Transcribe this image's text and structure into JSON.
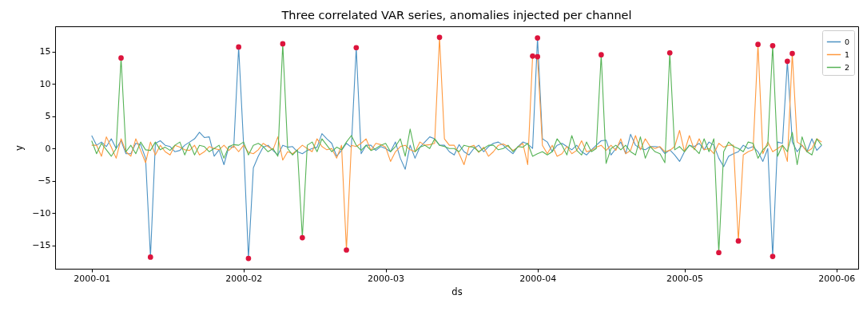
{
  "chart_data": {
    "type": "line",
    "title": "Three correlated VAR series, anomalies injected per channel",
    "xlabel": "ds",
    "ylabel": "y",
    "x": [
      "2000-01-01",
      "2000-01-02",
      "2000-01-03",
      "2000-01-04",
      "2000-01-05",
      "2000-01-06",
      "2000-01-07",
      "2000-01-08",
      "2000-01-09",
      "2000-01-10",
      "2000-01-11",
      "2000-01-12",
      "2000-01-13",
      "2000-01-14",
      "2000-01-15",
      "2000-01-16",
      "2000-01-17",
      "2000-01-18",
      "2000-01-19",
      "2000-01-20",
      "2000-01-21",
      "2000-01-22",
      "2000-01-23",
      "2000-01-24",
      "2000-01-25",
      "2000-01-26",
      "2000-01-27",
      "2000-01-28",
      "2000-01-29",
      "2000-01-30",
      "2000-01-31",
      "2000-02-01",
      "2000-02-02",
      "2000-02-03",
      "2000-02-04",
      "2000-02-05",
      "2000-02-06",
      "2000-02-07",
      "2000-02-08",
      "2000-02-09",
      "2000-02-10",
      "2000-02-11",
      "2000-02-12",
      "2000-02-13",
      "2000-02-14",
      "2000-02-15",
      "2000-02-16",
      "2000-02-17",
      "2000-02-18",
      "2000-02-19",
      "2000-02-20",
      "2000-02-21",
      "2000-02-22",
      "2000-02-23",
      "2000-02-24",
      "2000-02-25",
      "2000-02-26",
      "2000-02-27",
      "2000-02-28",
      "2000-02-29",
      "2000-03-01",
      "2000-03-02",
      "2000-03-03",
      "2000-03-04",
      "2000-03-05",
      "2000-03-06",
      "2000-03-07",
      "2000-03-08",
      "2000-03-09",
      "2000-03-10",
      "2000-03-11",
      "2000-03-12",
      "2000-03-13",
      "2000-03-14",
      "2000-03-15",
      "2000-03-16",
      "2000-03-17",
      "2000-03-18",
      "2000-03-19",
      "2000-03-20",
      "2000-03-21",
      "2000-03-22",
      "2000-03-23",
      "2000-03-24",
      "2000-03-25",
      "2000-03-26",
      "2000-03-27",
      "2000-03-28",
      "2000-03-29",
      "2000-03-30",
      "2000-03-31",
      "2000-04-01",
      "2000-04-02",
      "2000-04-03",
      "2000-04-04",
      "2000-04-05",
      "2000-04-06",
      "2000-04-07",
      "2000-04-08",
      "2000-04-09",
      "2000-04-10",
      "2000-04-11",
      "2000-04-12",
      "2000-04-13",
      "2000-04-14",
      "2000-04-15",
      "2000-04-16",
      "2000-04-17",
      "2000-04-18",
      "2000-04-19",
      "2000-04-20",
      "2000-04-21",
      "2000-04-22",
      "2000-04-23",
      "2000-04-24",
      "2000-04-25",
      "2000-04-26",
      "2000-04-27",
      "2000-04-28",
      "2000-04-29",
      "2000-04-30",
      "2000-05-01",
      "2000-05-02",
      "2000-05-03",
      "2000-05-04",
      "2000-05-05",
      "2000-05-06",
      "2000-05-07",
      "2000-05-08",
      "2000-05-09",
      "2000-05-10",
      "2000-05-11",
      "2000-05-12",
      "2000-05-13",
      "2000-05-14",
      "2000-05-15",
      "2000-05-16",
      "2000-05-17",
      "2000-05-18",
      "2000-05-19",
      "2000-05-20",
      "2000-05-21",
      "2000-05-22",
      "2000-05-23",
      "2000-05-24",
      "2000-05-25",
      "2000-05-26",
      "2000-05-27",
      "2000-05-28",
      "2000-05-29"
    ],
    "series": [
      {
        "name": "0",
        "color": "#4c92c3",
        "values": [
          2.0,
          0.5,
          1.0,
          0.3,
          1.5,
          0.0,
          1.2,
          -0.8,
          -0.8,
          0.8,
          0.6,
          -1.5,
          -16.8,
          0.8,
          1.2,
          0.5,
          0.3,
          -0.5,
          -0.3,
          0.5,
          1.0,
          1.5,
          2.5,
          1.7,
          1.8,
          -1.2,
          -0.2,
          -2.5,
          0.3,
          0.2,
          15.7,
          0.7,
          -17.0,
          -3.0,
          -1.2,
          0.2,
          0.5,
          -0.3,
          -1.0,
          0.5,
          0.2,
          0.3,
          -0.5,
          -0.8,
          -0.3,
          0.0,
          0.2,
          2.3,
          1.5,
          0.8,
          -1.2,
          -0.3,
          0.8,
          0.2,
          15.6,
          -0.8,
          0.5,
          0.5,
          -0.3,
          0.3,
          0.0,
          -0.5,
          1.0,
          -1.5,
          -3.2,
          0.5,
          -1.5,
          0.2,
          1.0,
          1.8,
          1.5,
          0.5,
          0.5,
          -0.5,
          -1.0,
          0.6,
          -0.5,
          -1.0,
          0.0,
          0.5,
          -0.5,
          0.3,
          0.8,
          1.0,
          0.5,
          -0.2,
          -0.8,
          0.3,
          1.0,
          0.7,
          0.0,
          17.1,
          1.5,
          1.0,
          -0.5,
          0.5,
          0.8,
          0.3,
          -0.2,
          0.5,
          -0.5,
          -1.0,
          -0.2,
          0.5,
          1.2,
          1.3,
          -1.0,
          0.0,
          1.0,
          -0.8,
          2.2,
          0.5,
          0.0,
          -0.2,
          0.3,
          0.3,
          0.2,
          -0.8,
          -0.2,
          -1.0,
          -2.0,
          -0.5,
          0.5,
          0.3,
          0.8,
          -0.2,
          1.0,
          0.5,
          -1.5,
          -2.8,
          -1.2,
          -0.8,
          -0.5,
          0.5,
          0.0,
          0.3,
          -0.5,
          -2.0,
          0.0,
          -16.7,
          1.0,
          0.8,
          13.5,
          1.0,
          -0.5,
          0.5,
          -0.5,
          1.5,
          -0.3,
          0.5
        ]
      },
      {
        "name": "1",
        "color": "#ff993e",
        "values": [
          0.5,
          0.5,
          -1.2,
          1.8,
          0.2,
          -1.5,
          1.5,
          -0.5,
          -1.2,
          1.5,
          -0.3,
          -2.2,
          1.0,
          -1.0,
          0.5,
          -0.5,
          -1.0,
          0.5,
          0.2,
          -0.2,
          -0.3,
          0.5,
          -1.0,
          -0.5,
          0.3,
          0.0,
          -0.2,
          0.5,
          -0.3,
          0.4,
          -0.5,
          0.5,
          -0.6,
          -0.8,
          -0.2,
          0.8,
          0.3,
          -0.2,
          1.8,
          -1.8,
          -0.5,
          -0.8,
          -0.2,
          0.5,
          0.0,
          -0.5,
          1.5,
          0.3,
          -0.2,
          0.0,
          -1.5,
          0.5,
          -15.7,
          0.5,
          0.3,
          0.8,
          1.5,
          -0.3,
          0.8,
          0.6,
          0.2,
          -2.0,
          -0.5,
          0.3,
          0.5,
          -0.2,
          -0.5,
          1.0,
          0.5,
          0.6,
          0.8,
          17.2,
          1.5,
          0.5,
          0.5,
          -0.8,
          -2.5,
          0.2,
          0.5,
          -0.6,
          0.2,
          -1.2,
          -0.5,
          0.5,
          0.7,
          0.3,
          -0.3,
          0.2,
          0.8,
          -2.5,
          14.3,
          14.2,
          0.5,
          -0.8,
          0.5,
          -1.2,
          -0.8,
          0.3,
          -0.8,
          -0.3,
          1.2,
          -0.5,
          -0.3,
          0.2,
          0.5,
          -0.3,
          0.5,
          -0.3,
          1.5,
          -0.8,
          -0.3,
          2.0,
          -0.2,
          1.5,
          0.3,
          0.0,
          0.3,
          -0.5,
          -0.3,
          0.3,
          2.8,
          -0.5,
          2.0,
          -0.2,
          1.5,
          -0.2,
          0.0,
          -0.8,
          0.8,
          0.2,
          0.5,
          0.5,
          -14.3,
          -1.0,
          -0.5,
          -0.2,
          16.1,
          -0.8,
          1.0,
          -0.5,
          0.0,
          0.5,
          -2.0,
          14.7,
          1.0,
          0.5,
          -0.5,
          0.0,
          1.5,
          1.0
        ]
      },
      {
        "name": "2",
        "color": "#56b356",
        "values": [
          1.2,
          -0.8,
          0.8,
          -0.2,
          -1.2,
          0.0,
          14.0,
          -0.5,
          0.5,
          -0.8,
          1.0,
          -0.2,
          -0.3,
          1.0,
          -0.2,
          0.2,
          -0.3,
          0.5,
          1.0,
          -1.0,
          0.8,
          -1.0,
          0.5,
          0.3,
          -0.5,
          0.0,
          0.5,
          -1.5,
          0.3,
          0.6,
          0.5,
          1.0,
          -1.0,
          0.5,
          0.8,
          0.3,
          -0.5,
          0.0,
          -1.2,
          16.2,
          0.0,
          -1.0,
          -0.2,
          -13.8,
          0.5,
          1.0,
          -0.5,
          1.5,
          0.5,
          -0.5,
          0.2,
          -0.2,
          1.0,
          2.0,
          0.5,
          -0.3,
          0.5,
          -0.3,
          0.0,
          0.5,
          0.8,
          -0.5,
          0.3,
          1.5,
          -1.2,
          3.0,
          -0.5,
          0.2,
          0.5,
          0.0,
          1.5,
          0.5,
          0.3,
          0.0,
          0.0,
          -0.5,
          0.5,
          0.3,
          0.2,
          -0.5,
          0.0,
          0.5,
          0.5,
          -0.2,
          0.0,
          0.5,
          -0.5,
          0.3,
          0.2,
          0.8,
          -1.2,
          -0.8,
          -0.5,
          -1.0,
          -0.5,
          1.5,
          0.5,
          -1.0,
          2.0,
          -0.3,
          -1.0,
          1.0,
          -0.5,
          0.0,
          14.5,
          -2.3,
          0.0,
          0.5,
          -0.2,
          0.5,
          -0.5,
          -1.0,
          1.8,
          -1.5,
          0.3,
          -0.5,
          -0.8,
          -2.2,
          14.8,
          -0.2,
          0.3,
          -0.5,
          0.5,
          0.0,
          -0.8,
          1.5,
          -0.5,
          1.5,
          -16.1,
          -0.5,
          1.0,
          0.3,
          0.0,
          -0.5,
          1.0,
          0.8,
          -1.5,
          -0.2,
          0.5,
          15.9,
          -1.2,
          0.5,
          -0.5,
          2.5,
          -2.5,
          1.8,
          -0.5,
          -1.0,
          1.5,
          0.5
        ]
      },
      {
        "type": "scatter",
        "marker": "circle",
        "color": "#dc143c",
        "x": [
          "2000-01-07",
          "2000-01-13",
          "2000-01-31",
          "2000-02-02",
          "2000-02-09",
          "2000-02-13",
          "2000-02-22",
          "2000-02-24",
          "2000-03-12",
          "2000-03-31",
          "2000-04-01",
          "2000-04-01",
          "2000-04-14",
          "2000-04-28",
          "2000-05-08",
          "2000-05-12",
          "2000-05-16",
          "2000-05-19",
          "2000-05-19",
          "2000-05-22",
          "2000-05-23"
        ],
        "values": [
          14.0,
          -16.8,
          15.7,
          -17.0,
          16.2,
          -13.8,
          -15.7,
          15.6,
          17.2,
          14.3,
          14.2,
          17.1,
          14.5,
          14.8,
          -16.1,
          -14.3,
          16.1,
          15.9,
          -16.7,
          13.5,
          14.7
        ]
      }
    ],
    "xlim": [
      "1999-12-24T13:00",
      "2000-06-05T11:00"
    ],
    "xticks": [
      "2000-01",
      "2000-02",
      "2000-03",
      "2000-04",
      "2000-05",
      "2000-06"
    ],
    "ylim": [
      -18.6,
      18.9
    ],
    "yticks": [
      -15,
      -10,
      -5,
      0,
      5,
      10,
      15
    ],
    "legend": "top right"
  }
}
